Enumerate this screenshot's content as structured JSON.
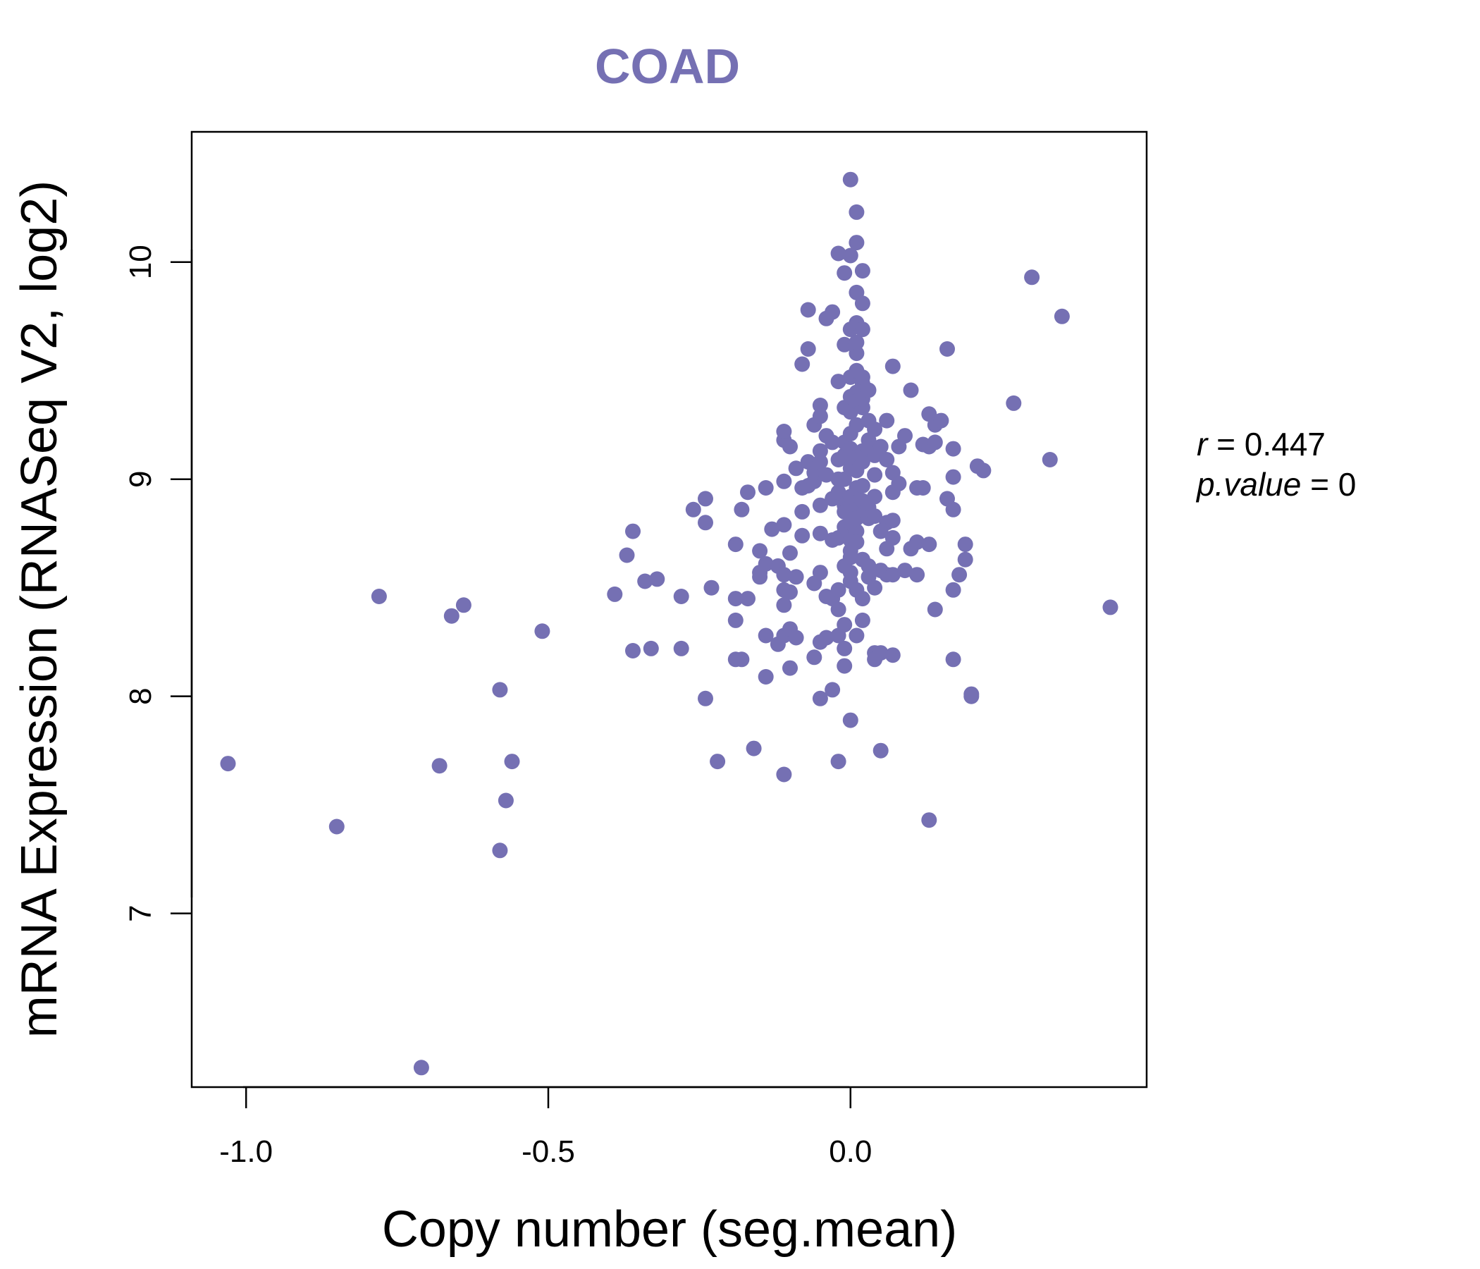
{
  "chart_data": {
    "type": "scatter",
    "title": "COAD",
    "xlabel": "Copy number (seg.mean)",
    "ylabel": "mRNA Expression (RNASeq V2, log2)",
    "xlim": [
      -1.09,
      0.49
    ],
    "ylim": [
      6.2,
      10.6
    ],
    "x_ticks": [
      {
        "value": -1.0,
        "label": "-1.0"
      },
      {
        "value": -0.5,
        "label": "-0.5"
      },
      {
        "value": 0.0,
        "label": "0.0"
      }
    ],
    "y_ticks": [
      {
        "value": 7,
        "label": "7"
      },
      {
        "value": 8,
        "label": "8"
      },
      {
        "value": 9,
        "label": "9"
      },
      {
        "value": 10,
        "label": "10"
      }
    ],
    "stats": {
      "r_label": "r",
      "r_value": "0.447",
      "p_label": "p.value",
      "p_value": "0"
    },
    "colors": {
      "points": "#7570b3",
      "title": "#7570b3",
      "axes": "#000000"
    },
    "points": [
      [
        -1.03,
        7.69
      ],
      [
        -0.85,
        7.4
      ],
      [
        -0.78,
        8.46
      ],
      [
        -0.71,
        6.29
      ],
      [
        -0.68,
        7.68
      ],
      [
        -0.66,
        8.37
      ],
      [
        -0.64,
        8.42
      ],
      [
        -0.58,
        8.03
      ],
      [
        -0.58,
        7.29
      ],
      [
        -0.57,
        7.52
      ],
      [
        -0.56,
        7.7
      ],
      [
        -0.51,
        8.3
      ],
      [
        -0.39,
        8.47
      ],
      [
        -0.37,
        8.65
      ],
      [
        -0.36,
        8.76
      ],
      [
        -0.36,
        8.21
      ],
      [
        -0.34,
        8.53
      ],
      [
        -0.33,
        8.22
      ],
      [
        -0.32,
        8.54
      ],
      [
        -0.28,
        8.46
      ],
      [
        -0.28,
        8.22
      ],
      [
        -0.26,
        8.86
      ],
      [
        -0.24,
        8.91
      ],
      [
        -0.24,
        8.8
      ],
      [
        -0.24,
        7.99
      ],
      [
        -0.23,
        8.5
      ],
      [
        -0.22,
        7.7
      ],
      [
        -0.19,
        8.45
      ],
      [
        -0.19,
        8.7
      ],
      [
        -0.19,
        8.35
      ],
      [
        -0.19,
        8.17
      ],
      [
        -0.18,
        8.86
      ],
      [
        -0.18,
        8.17
      ],
      [
        -0.17,
        8.94
      ],
      [
        -0.17,
        8.45
      ],
      [
        -0.16,
        7.76
      ],
      [
        -0.15,
        8.57
      ],
      [
        -0.15,
        8.67
      ],
      [
        -0.15,
        8.55
      ],
      [
        -0.14,
        8.28
      ],
      [
        -0.14,
        8.61
      ],
      [
        -0.14,
        8.96
      ],
      [
        -0.14,
        8.09
      ],
      [
        -0.13,
        8.77
      ],
      [
        -0.12,
        8.6
      ],
      [
        -0.12,
        8.24
      ],
      [
        -0.11,
        9.18
      ],
      [
        -0.11,
        9.22
      ],
      [
        -0.11,
        8.99
      ],
      [
        -0.11,
        8.79
      ],
      [
        -0.11,
        8.42
      ],
      [
        -0.11,
        8.56
      ],
      [
        -0.11,
        8.49
      ],
      [
        -0.11,
        8.28
      ],
      [
        -0.11,
        7.64
      ],
      [
        -0.1,
        9.15
      ],
      [
        -0.1,
        8.48
      ],
      [
        -0.1,
        8.31
      ],
      [
        -0.1,
        8.13
      ],
      [
        -0.1,
        8.66
      ],
      [
        -0.09,
        9.05
      ],
      [
        -0.09,
        8.55
      ],
      [
        -0.09,
        8.27
      ],
      [
        -0.08,
        8.74
      ],
      [
        -0.08,
        9.53
      ],
      [
        -0.08,
        8.96
      ],
      [
        -0.08,
        8.85
      ],
      [
        -0.07,
        9.78
      ],
      [
        -0.07,
        9.6
      ],
      [
        -0.07,
        9.08
      ],
      [
        -0.07,
        8.97
      ],
      [
        -0.06,
        9.25
      ],
      [
        -0.06,
        8.52
      ],
      [
        -0.06,
        8.99
      ],
      [
        -0.06,
        9.03
      ],
      [
        -0.06,
        8.18
      ],
      [
        -0.05,
        9.34
      ],
      [
        -0.05,
        9.29
      ],
      [
        -0.05,
        9.13
      ],
      [
        -0.05,
        8.88
      ],
      [
        -0.05,
        8.75
      ],
      [
        -0.05,
        8.57
      ],
      [
        -0.05,
        8.25
      ],
      [
        -0.05,
        7.99
      ],
      [
        -0.05,
        9.08
      ],
      [
        -0.04,
        9.74
      ],
      [
        -0.04,
        9.02
      ],
      [
        -0.04,
        8.46
      ],
      [
        -0.04,
        8.27
      ],
      [
        -0.04,
        9.2
      ],
      [
        -0.03,
        9.77
      ],
      [
        -0.03,
        9.17
      ],
      [
        -0.03,
        8.03
      ],
      [
        -0.03,
        8.91
      ],
      [
        -0.03,
        8.72
      ],
      [
        -0.03,
        8.45
      ],
      [
        -0.02,
        9.45
      ],
      [
        -0.02,
        9.09
      ],
      [
        -0.02,
        8.94
      ],
      [
        -0.02,
        8.73
      ],
      [
        -0.02,
        8.49
      ],
      [
        -0.02,
        8.28
      ],
      [
        -0.02,
        7.7
      ],
      [
        -0.02,
        9.0
      ],
      [
        -0.02,
        10.04
      ],
      [
        -0.02,
        8.4
      ],
      [
        -0.01,
        9.11
      ],
      [
        -0.01,
        8.88
      ],
      [
        -0.01,
        8.78
      ],
      [
        -0.01,
        8.6
      ],
      [
        -0.01,
        8.14
      ],
      [
        -0.01,
        9.62
      ],
      [
        -0.01,
        9.17
      ],
      [
        -0.01,
        9.0
      ],
      [
        -0.01,
        8.85
      ],
      [
        -0.01,
        9.95
      ],
      [
        -0.01,
        8.33
      ],
      [
        -0.01,
        8.22
      ],
      [
        -0.01,
        9.33
      ],
      [
        0.0,
        9.21
      ],
      [
        0.0,
        9.12
      ],
      [
        0.0,
        8.89
      ],
      [
        0.0,
        8.72
      ],
      [
        0.0,
        8.64
      ],
      [
        0.0,
        8.57
      ],
      [
        0.0,
        9.47
      ],
      [
        0.0,
        9.38
      ],
      [
        0.0,
        7.89
      ],
      [
        0.0,
        9.05
      ],
      [
        0.0,
        8.8
      ],
      [
        0.0,
        10.38
      ],
      [
        0.0,
        10.03
      ],
      [
        0.0,
        9.69
      ],
      [
        0.0,
        9.31
      ],
      [
        0.0,
        9.14
      ],
      [
        0.0,
        8.92
      ],
      [
        0.0,
        8.67
      ],
      [
        0.0,
        8.53
      ],
      [
        0.01,
        9.4
      ],
      [
        0.01,
        9.25
      ],
      [
        0.01,
        9.04
      ],
      [
        0.01,
        8.96
      ],
      [
        0.01,
        8.86
      ],
      [
        0.01,
        8.76
      ],
      [
        0.01,
        8.71
      ],
      [
        0.01,
        9.72
      ],
      [
        0.01,
        9.58
      ],
      [
        0.01,
        9.5
      ],
      [
        0.01,
        10.23
      ],
      [
        0.01,
        9.86
      ],
      [
        0.01,
        9.1
      ],
      [
        0.01,
        8.82
      ],
      [
        0.01,
        8.49
      ],
      [
        0.01,
        8.28
      ],
      [
        0.01,
        9.36
      ],
      [
        0.01,
        9.63
      ],
      [
        0.01,
        10.09
      ],
      [
        0.02,
        9.96
      ],
      [
        0.02,
        9.81
      ],
      [
        0.02,
        9.69
      ],
      [
        0.02,
        9.44
      ],
      [
        0.02,
        9.33
      ],
      [
        0.02,
        9.13
      ],
      [
        0.02,
        9.08
      ],
      [
        0.02,
        8.97
      ],
      [
        0.02,
        8.9
      ],
      [
        0.02,
        8.63
      ],
      [
        0.02,
        8.45
      ],
      [
        0.02,
        8.35
      ],
      [
        0.02,
        9.47
      ],
      [
        0.02,
        9.37
      ],
      [
        0.03,
        9.41
      ],
      [
        0.03,
        9.27
      ],
      [
        0.03,
        9.18
      ],
      [
        0.03,
        9.14
      ],
      [
        0.03,
        8.87
      ],
      [
        0.03,
        8.6
      ],
      [
        0.03,
        8.82
      ],
      [
        0.03,
        8.55
      ],
      [
        0.04,
        9.11
      ],
      [
        0.04,
        9.02
      ],
      [
        0.04,
        8.92
      ],
      [
        0.04,
        8.83
      ],
      [
        0.04,
        8.5
      ],
      [
        0.04,
        8.2
      ],
      [
        0.04,
        8.17
      ],
      [
        0.04,
        9.23
      ],
      [
        0.05,
        9.15
      ],
      [
        0.05,
        8.76
      ],
      [
        0.05,
        8.58
      ],
      [
        0.05,
        7.75
      ],
      [
        0.05,
        8.2
      ],
      [
        0.06,
        9.09
      ],
      [
        0.06,
        8.8
      ],
      [
        0.06,
        9.27
      ],
      [
        0.06,
        8.68
      ],
      [
        0.06,
        8.56
      ],
      [
        0.07,
        9.52
      ],
      [
        0.07,
        9.03
      ],
      [
        0.07,
        8.94
      ],
      [
        0.07,
        8.73
      ],
      [
        0.07,
        8.56
      ],
      [
        0.07,
        8.19
      ],
      [
        0.07,
        8.81
      ],
      [
        0.08,
        9.15
      ],
      [
        0.08,
        8.98
      ],
      [
        0.09,
        9.2
      ],
      [
        0.09,
        8.58
      ],
      [
        0.1,
        9.41
      ],
      [
        0.1,
        8.68
      ],
      [
        0.11,
        8.96
      ],
      [
        0.11,
        8.71
      ],
      [
        0.11,
        8.56
      ],
      [
        0.12,
        9.16
      ],
      [
        0.12,
        8.96
      ],
      [
        0.13,
        9.3
      ],
      [
        0.13,
        8.7
      ],
      [
        0.13,
        9.15
      ],
      [
        0.13,
        7.43
      ],
      [
        0.14,
        9.25
      ],
      [
        0.14,
        9.17
      ],
      [
        0.14,
        8.4
      ],
      [
        0.15,
        9.27
      ],
      [
        0.16,
        9.6
      ],
      [
        0.16,
        8.91
      ],
      [
        0.17,
        9.14
      ],
      [
        0.17,
        8.86
      ],
      [
        0.17,
        8.49
      ],
      [
        0.17,
        8.17
      ],
      [
        0.17,
        9.01
      ],
      [
        0.18,
        8.56
      ],
      [
        0.19,
        8.7
      ],
      [
        0.19,
        8.63
      ],
      [
        0.2,
        8.01
      ],
      [
        0.2,
        8.0
      ],
      [
        0.21,
        9.06
      ],
      [
        0.22,
        9.04
      ],
      [
        0.27,
        9.35
      ],
      [
        0.3,
        9.93
      ],
      [
        0.33,
        9.09
      ],
      [
        0.35,
        9.75
      ],
      [
        0.43,
        8.41
      ]
    ]
  }
}
